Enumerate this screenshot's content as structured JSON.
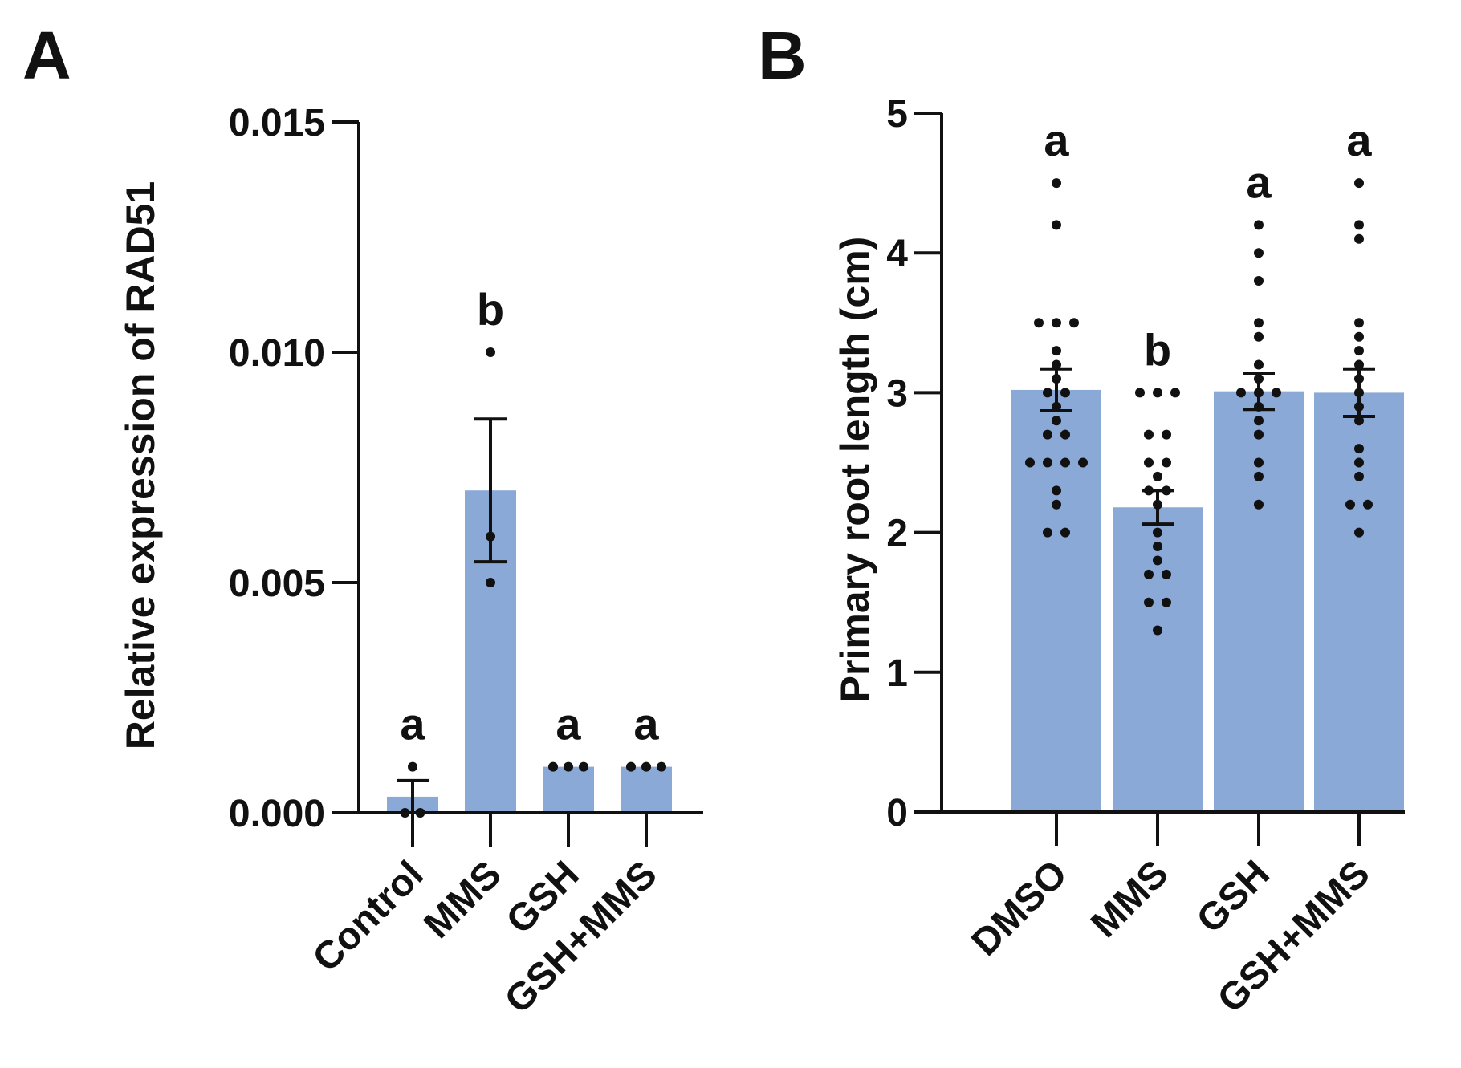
{
  "colors": {
    "bar": "#8aa9d6",
    "ink": "#111111",
    "background": "#ffffff"
  },
  "chart_data": [
    {
      "panel": "A",
      "type": "bar",
      "title": "",
      "xlabel": "",
      "ylabel": "Relative expression of RAD51",
      "ylim": [
        0,
        0.015
      ],
      "yticks": [
        "0.000",
        "0.005",
        "0.010",
        "0.015"
      ],
      "ytick_values": [
        0,
        0.005,
        0.01,
        0.015
      ],
      "categories": [
        "Control",
        "MMS",
        "GSH",
        "GSH+MMS"
      ],
      "values": [
        0.00035,
        0.007,
        0.001,
        0.001
      ],
      "error": [
        0.00035,
        0.00155,
        0,
        0
      ],
      "points": [
        [
          0,
          0,
          0.001
        ],
        [
          0.005,
          0.006,
          0.01
        ],
        [
          0.001,
          0.001,
          0.001
        ],
        [
          0.001,
          0.001,
          0.001
        ]
      ],
      "letters": [
        "a",
        "b",
        "a",
        "a"
      ],
      "grid": false
    },
    {
      "panel": "B",
      "type": "bar",
      "title": "",
      "xlabel": "",
      "ylabel": "Primary root length (cm)",
      "ylim": [
        0,
        5
      ],
      "yticks": [
        "0",
        "1",
        "2",
        "3",
        "4",
        "5"
      ],
      "ytick_values": [
        0,
        1,
        2,
        3,
        4,
        5
      ],
      "categories": [
        "DMSO",
        "MMS",
        "GSH",
        "GSH+MMS"
      ],
      "values": [
        3.02,
        2.18,
        3.01,
        3.0
      ],
      "error": [
        0.15,
        0.12,
        0.13,
        0.17
      ],
      "points": [
        [
          2.0,
          2.0,
          2.2,
          2.3,
          2.5,
          2.5,
          2.5,
          2.5,
          2.7,
          2.7,
          2.8,
          2.9,
          3.0,
          3.0,
          3.1,
          3.2,
          3.3,
          3.5,
          3.5,
          3.5,
          4.2,
          4.5
        ],
        [
          1.3,
          1.5,
          1.5,
          1.7,
          1.7,
          1.8,
          1.9,
          2.0,
          2.2,
          2.3,
          2.3,
          2.4,
          2.5,
          2.5,
          2.7,
          2.7,
          3.0,
          3.0,
          3.0
        ],
        [
          2.2,
          2.4,
          2.5,
          2.7,
          2.8,
          2.9,
          3.0,
          3.0,
          3.0,
          3.1,
          3.2,
          3.4,
          3.5,
          3.8,
          4.0,
          4.2
        ],
        [
          2.0,
          2.2,
          2.2,
          2.4,
          2.5,
          2.6,
          2.8,
          2.9,
          3.0,
          3.1,
          3.2,
          3.3,
          3.4,
          3.5,
          4.1,
          4.2,
          4.5
        ]
      ],
      "letters": [
        "a",
        "b",
        "a",
        "a"
      ],
      "grid": false
    }
  ]
}
